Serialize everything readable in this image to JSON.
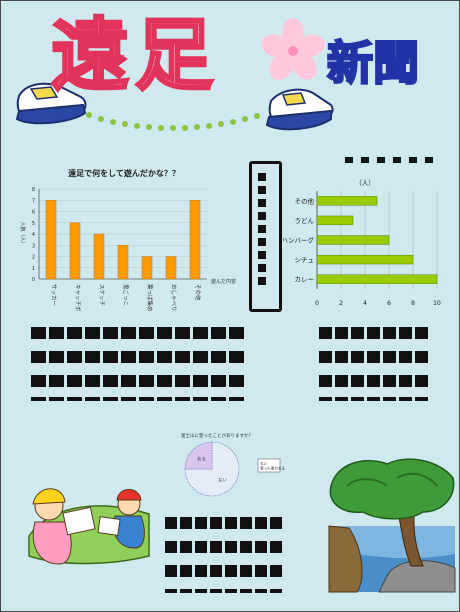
{
  "title": {
    "main": "遠足",
    "sub": "新聞"
  },
  "chart_data": [
    {
      "type": "bar",
      "title": "遠足で何をして遊んだかな？？",
      "ylabel": "人数（人）",
      "xlabel": "遊んだ内容",
      "categories": [
        "サッカー",
        "キャッチボール",
        "スケッチ",
        "鬼ごっこ",
        "葉っぱ集め",
        "おしゃべり",
        "その他"
      ],
      "values": [
        7,
        5,
        4,
        3,
        2,
        2,
        7
      ],
      "ylim": [
        0,
        8
      ],
      "yticks": [
        "0",
        "1",
        "2",
        "3",
        "4",
        "5",
        "6",
        "7",
        "8"
      ],
      "color": "#ff9900"
    },
    {
      "type": "bar",
      "orientation": "horizontal",
      "unit": "（人）",
      "categories": [
        "その他",
        "うどん",
        "ハンバーグ",
        "シチュ",
        "カレー"
      ],
      "values": [
        5,
        3,
        6,
        8,
        10
      ],
      "xlim": [
        0,
        10
      ],
      "xticks": [
        "0",
        "2",
        "4",
        "6",
        "8",
        "10"
      ],
      "color": "#99cc00"
    },
    {
      "type": "pie",
      "title": "富士山に登ったことがありますか？",
      "labels": [
        "ない",
        "登った事がある"
      ],
      "values": [
        75,
        25
      ],
      "slice_labels": [
        "ない",
        "ある"
      ],
      "colors": [
        "#e4ecf8",
        "#d9c4ee"
      ],
      "legend": "右側",
      "legend_lines": [
        "ない",
        "登った事がある"
      ]
    }
  ]
}
